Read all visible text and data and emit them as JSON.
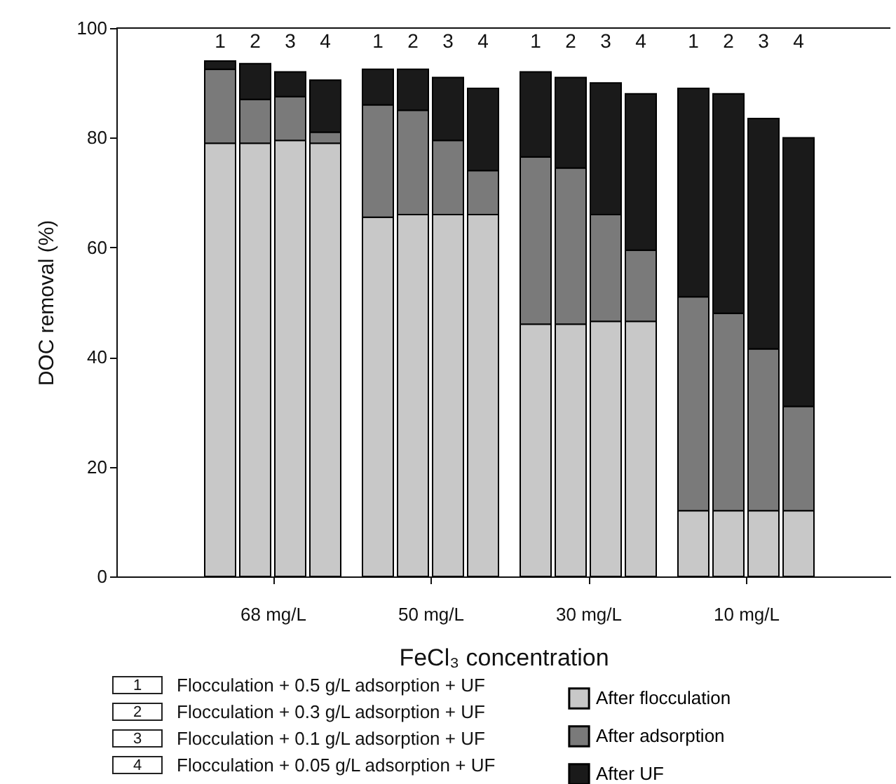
{
  "chart_data": {
    "type": "bar",
    "stacked": true,
    "xlabel": "FeCl₃ concentration",
    "ylabel": "DOC removal (%)",
    "categories": [
      "1",
      "2",
      "3",
      "4",
      "1",
      "2",
      "3",
      "4",
      "1",
      "2",
      "3",
      "4",
      "1",
      "2",
      "3",
      "4"
    ],
    "series": [
      {
        "name": "After flocculation",
        "color": "#c8c8c8",
        "values": [
          79,
          79,
          79.5,
          79,
          65.5,
          66,
          66,
          66,
          46,
          46,
          46.5,
          46.5,
          12,
          12,
          12,
          12
        ]
      },
      {
        "name": "After adsorption",
        "color": "#7a7a7a",
        "values": [
          13.5,
          8,
          8,
          2,
          20.5,
          19,
          13.5,
          8,
          30.5,
          28.5,
          19.5,
          13,
          39,
          36,
          29.5,
          19
        ]
      },
      {
        "name": "After UF",
        "color": "#1a1a1a",
        "values": [
          1.5,
          6.5,
          4.5,
          9.5,
          6.5,
          7.5,
          11.5,
          15,
          15.5,
          16.5,
          24,
          28.5,
          38,
          40,
          42,
          49
        ]
      }
    ],
    "annotations": [
      "68 mg/L",
      "50 mg/L",
      "30 mg/L",
      "10 mg/L",
      "Flocculation + 0.5 g/L adsorption + UF",
      "Flocculation + 0.3 g/L adsorption + UF",
      "Flocculation + 0.1 g/L adsorption + UF",
      "Flocculation + 0.05 g/L adsorption + UF"
    ],
    "ylim": [
      0,
      100
    ],
    "yticks": [
      0,
      20,
      40,
      60,
      80,
      100
    ],
    "grid": false,
    "legend": "bottom"
  }
}
